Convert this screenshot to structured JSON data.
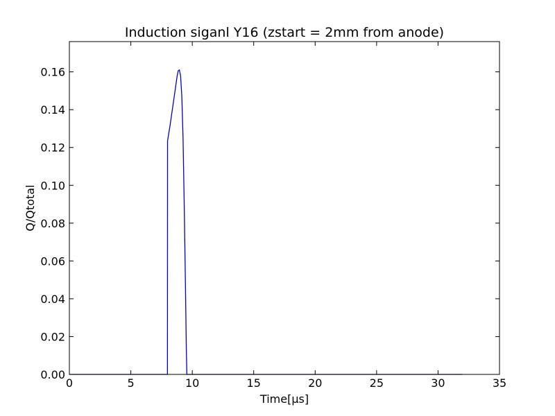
{
  "chart_data": {
    "type": "line",
    "title": "Induction siganl Y16 (zstart = 2mm from anode)",
    "xlabel": "Time[μs]",
    "ylabel": "Q/Qtotal",
    "xlim": [
      0,
      35
    ],
    "ylim": [
      0,
      0.176
    ],
    "xticks": [
      0,
      5,
      10,
      15,
      20,
      25,
      30,
      35
    ],
    "xtick_labels": [
      "0",
      "5",
      "10",
      "15",
      "20",
      "25",
      "30",
      "35"
    ],
    "yticks": [
      0.0,
      0.02,
      0.04,
      0.06,
      0.08,
      0.1,
      0.12,
      0.14,
      0.16
    ],
    "ytick_labels": [
      "0.00",
      "0.02",
      "0.04",
      "0.06",
      "0.08",
      "0.10",
      "0.12",
      "0.14",
      "0.16"
    ],
    "grid": false,
    "series": [
      {
        "color": "#0000cc",
        "x": [
          0,
          7.98,
          7.99,
          8.2,
          8.4,
          8.6,
          8.75,
          8.85,
          8.95,
          9.05,
          9.15,
          9.25,
          9.35,
          9.45,
          9.52,
          9.56,
          10,
          32
        ],
        "y": [
          0,
          0,
          0.1235,
          0.132,
          0.141,
          0.15,
          0.157,
          0.1605,
          0.161,
          0.158,
          0.147,
          0.125,
          0.088,
          0.045,
          0.012,
          0,
          0,
          0
        ]
      }
    ]
  }
}
